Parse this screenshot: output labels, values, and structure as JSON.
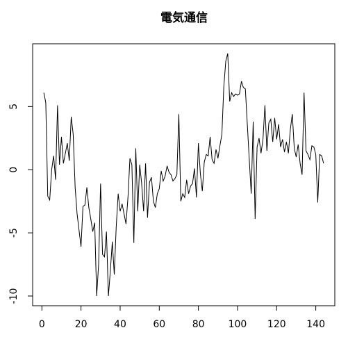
{
  "chart_data": {
    "type": "line",
    "title": "電気通信",
    "x": [
      1,
      2,
      3,
      4,
      5,
      6,
      7,
      8,
      9,
      10,
      11,
      12,
      13,
      14,
      15,
      16,
      17,
      18,
      19,
      20,
      21,
      22,
      23,
      24,
      25,
      26,
      27,
      28,
      29,
      30,
      31,
      32,
      33,
      34,
      35,
      36,
      37,
      38,
      39,
      40,
      41,
      42,
      43,
      44,
      45,
      46,
      47,
      48,
      49,
      50,
      51,
      52,
      53,
      54,
      55,
      56,
      57,
      58,
      59,
      60,
      61,
      62,
      63,
      64,
      65,
      66,
      67,
      68,
      69,
      70,
      71,
      72,
      73,
      74,
      75,
      76,
      77,
      78,
      79,
      80,
      81,
      82,
      83,
      84,
      85,
      86,
      87,
      88,
      89,
      90,
      91,
      92,
      93,
      94,
      95,
      96,
      97,
      98,
      99,
      100,
      101,
      102,
      103,
      104,
      105,
      106,
      107,
      108,
      109,
      110,
      111,
      112,
      113,
      114,
      115,
      116,
      117,
      118,
      119,
      120,
      121,
      122,
      123,
      124,
      125,
      126,
      127,
      128,
      129,
      130,
      131,
      132,
      133,
      134,
      135,
      136,
      137,
      138,
      139,
      140,
      141,
      142,
      143,
      144
    ],
    "series": [
      {
        "color": "#000000",
        "values": [
          6.1,
          5.3,
          -2.1,
          -2.4,
          0,
          1.1,
          -0.8,
          5.1,
          0.4,
          2.6,
          0.5,
          1.3,
          2.1,
          0.7,
          4.2,
          2.8,
          -1.4,
          -3.5,
          -4.8,
          -6.1,
          -2.9,
          -2.8,
          -1.4,
          -3.0,
          -3.9,
          -4.9,
          -4.2,
          -10.0,
          -7.5,
          -1.1,
          -6.7,
          -6.9,
          -4.9,
          -10.0,
          -8.0,
          -5.7,
          -8.3,
          -4.5,
          -1.9,
          -3.3,
          -2.7,
          -3.5,
          -4.3,
          -2.2,
          0.9,
          0.4,
          -5.8,
          1.7,
          -3.3,
          0.4,
          -1.1,
          -3.3,
          0.5,
          -3.8,
          -1.0,
          -0.6,
          -2.5,
          -3.0,
          -1.9,
          -1.5,
          -0.1,
          -0.9,
          -0.5,
          0.3,
          -0.2,
          -0.4,
          -0.9,
          -0.7,
          -0.4,
          4.4,
          -2.5,
          -1.9,
          -2.2,
          -0.8,
          -1.9,
          -1.3,
          -1.1,
          0.1,
          -2.2,
          2.1,
          -0.3,
          -1.7,
          0.6,
          1.2,
          1.1,
          2.6,
          0.8,
          0.5,
          1.6,
          0.9,
          1.9,
          2.8,
          6.6,
          8.6,
          9.2,
          5.4,
          6.1,
          5.8,
          6.0,
          5.9,
          6.0,
          7.0,
          6.5,
          6.4,
          3.6,
          0.8,
          -1.9,
          3.8,
          -3.9,
          1.8,
          2.5,
          1.3,
          2.4,
          5.1,
          1.5,
          3.7,
          4.0,
          2.2,
          4.1,
          2.4,
          3.6,
          1.8,
          2.4,
          1.4,
          2.2,
          1.3,
          3.2,
          4.4,
          1.7,
          1.0,
          2.0,
          0.5,
          -0.4,
          6.1,
          1.5,
          1.2,
          0.8,
          1.9,
          1.8,
          1.2,
          -2.6,
          1.2,
          1.1,
          0.5
        ]
      }
    ],
    "xlim": [
      -4.72,
      149.72
    ],
    "ylim": [
      -10.77,
      9.97
    ],
    "xticks": [
      0,
      20,
      40,
      60,
      80,
      100,
      120,
      140
    ],
    "yticks": [
      -10,
      -5,
      0,
      5
    ]
  }
}
